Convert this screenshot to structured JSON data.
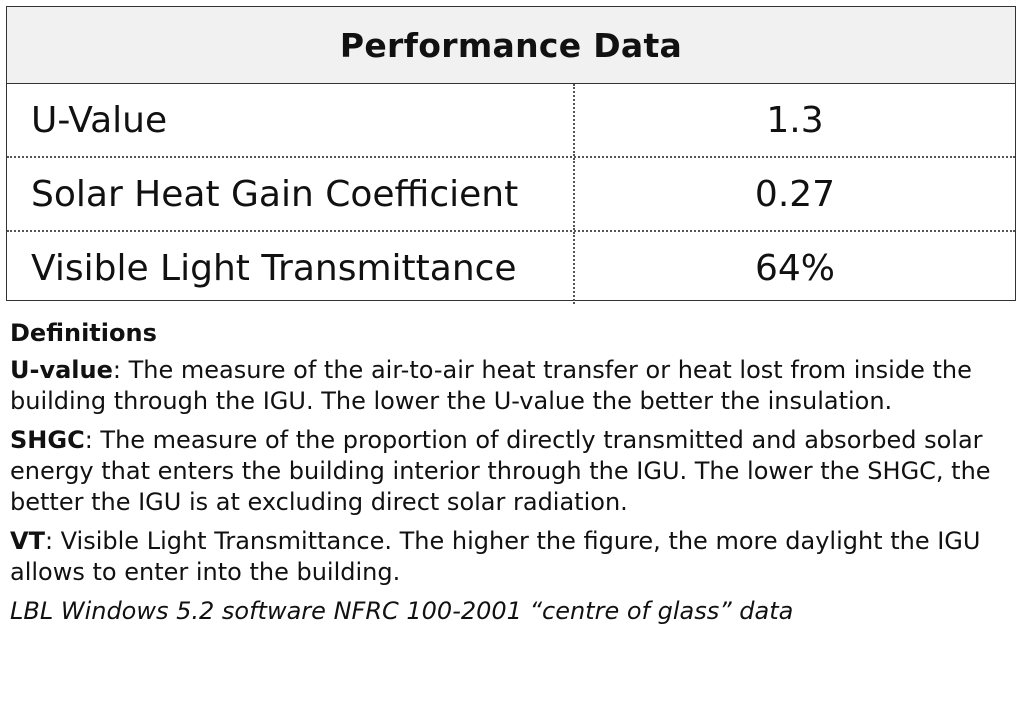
{
  "table": {
    "header": "Performance Data",
    "rows": [
      {
        "label": "U-Value",
        "value": "1.3"
      },
      {
        "label": "Solar Heat Gain Coefficient",
        "value": "0.27"
      },
      {
        "label": "Visible Light Transmittance",
        "value": "64%"
      }
    ]
  },
  "definitions": {
    "title": "Definitions",
    "items": [
      {
        "term": "U-value",
        "text": ": The measure of the air-to-air heat transfer or heat lost from inside the building through the IGU. The lower the U-value the better the insulation."
      },
      {
        "term": "SHGC",
        "text": ": The measure of the proportion of directly transmitted and absorbed solar energy that enters the building interior through the IGU. The lower the SHGC, the better the IGU is at excluding direct solar radiation."
      },
      {
        "term": "VT",
        "text": ": Visible Light Transmittance. The higher the figure, the more daylight the IGU allows to enter into the building."
      }
    ],
    "source": "LBL Windows 5.2 software NFRC 100-2001 “centre of glass” data"
  }
}
